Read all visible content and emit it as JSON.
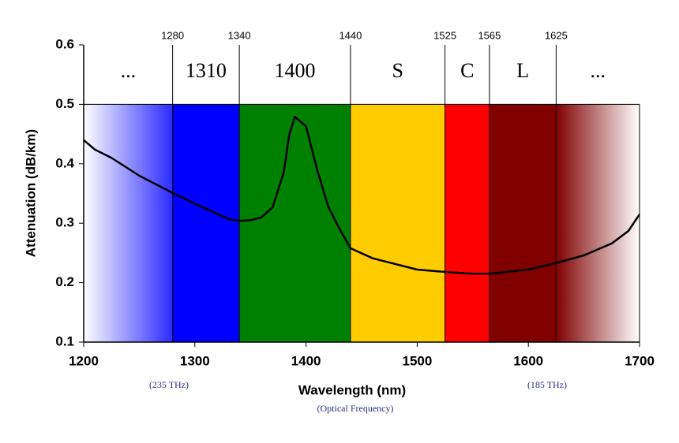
{
  "chart_data": {
    "type": "line",
    "x_label": "Wavelength (nm)",
    "y_label": "Attenuation (dB/km)",
    "annotations": [
      "(235 THz)",
      "(185 THz)",
      "(Optical Frequency)"
    ],
    "xlim": [
      1200,
      1700
    ],
    "ylim": [
      0.1,
      0.6
    ],
    "xticks": [
      1200,
      1300,
      1400,
      1500,
      1600,
      1700
    ],
    "yticks": [
      0.1,
      0.2,
      0.3,
      0.4,
      0.5,
      0.6
    ],
    "band_top": 0.5,
    "band_edges": [
      1280,
      1340,
      1440,
      1525,
      1565,
      1625
    ],
    "bands": [
      {
        "label": "...",
        "color": "#2a2aff"
      },
      {
        "label": "1310",
        "color": "#0000ff"
      },
      {
        "label": "1400",
        "color": "#008000"
      },
      {
        "label": "S",
        "color": "#ffcc00"
      },
      {
        "label": "C",
        "color": "#ff0000"
      },
      {
        "label": "L",
        "color": "#800000"
      },
      {
        "label": "...",
        "color": "#800000"
      }
    ],
    "color": "#000000",
    "x": [
      1200,
      1210,
      1225,
      1250,
      1280,
      1300,
      1330,
      1340,
      1350,
      1360,
      1370,
      1380,
      1385,
      1390,
      1400,
      1410,
      1420,
      1430,
      1440,
      1460,
      1500,
      1525,
      1550,
      1565,
      1600,
      1625,
      1650,
      1675,
      1690,
      1700
    ],
    "values": [
      0.44,
      0.424,
      0.41,
      0.38,
      0.351,
      0.333,
      0.307,
      0.304,
      0.305,
      0.31,
      0.327,
      0.386,
      0.45,
      0.479,
      0.463,
      0.39,
      0.328,
      0.291,
      0.258,
      0.241,
      0.222,
      0.218,
      0.215,
      0.215,
      0.222,
      0.233,
      0.246,
      0.266,
      0.287,
      0.315
    ]
  }
}
